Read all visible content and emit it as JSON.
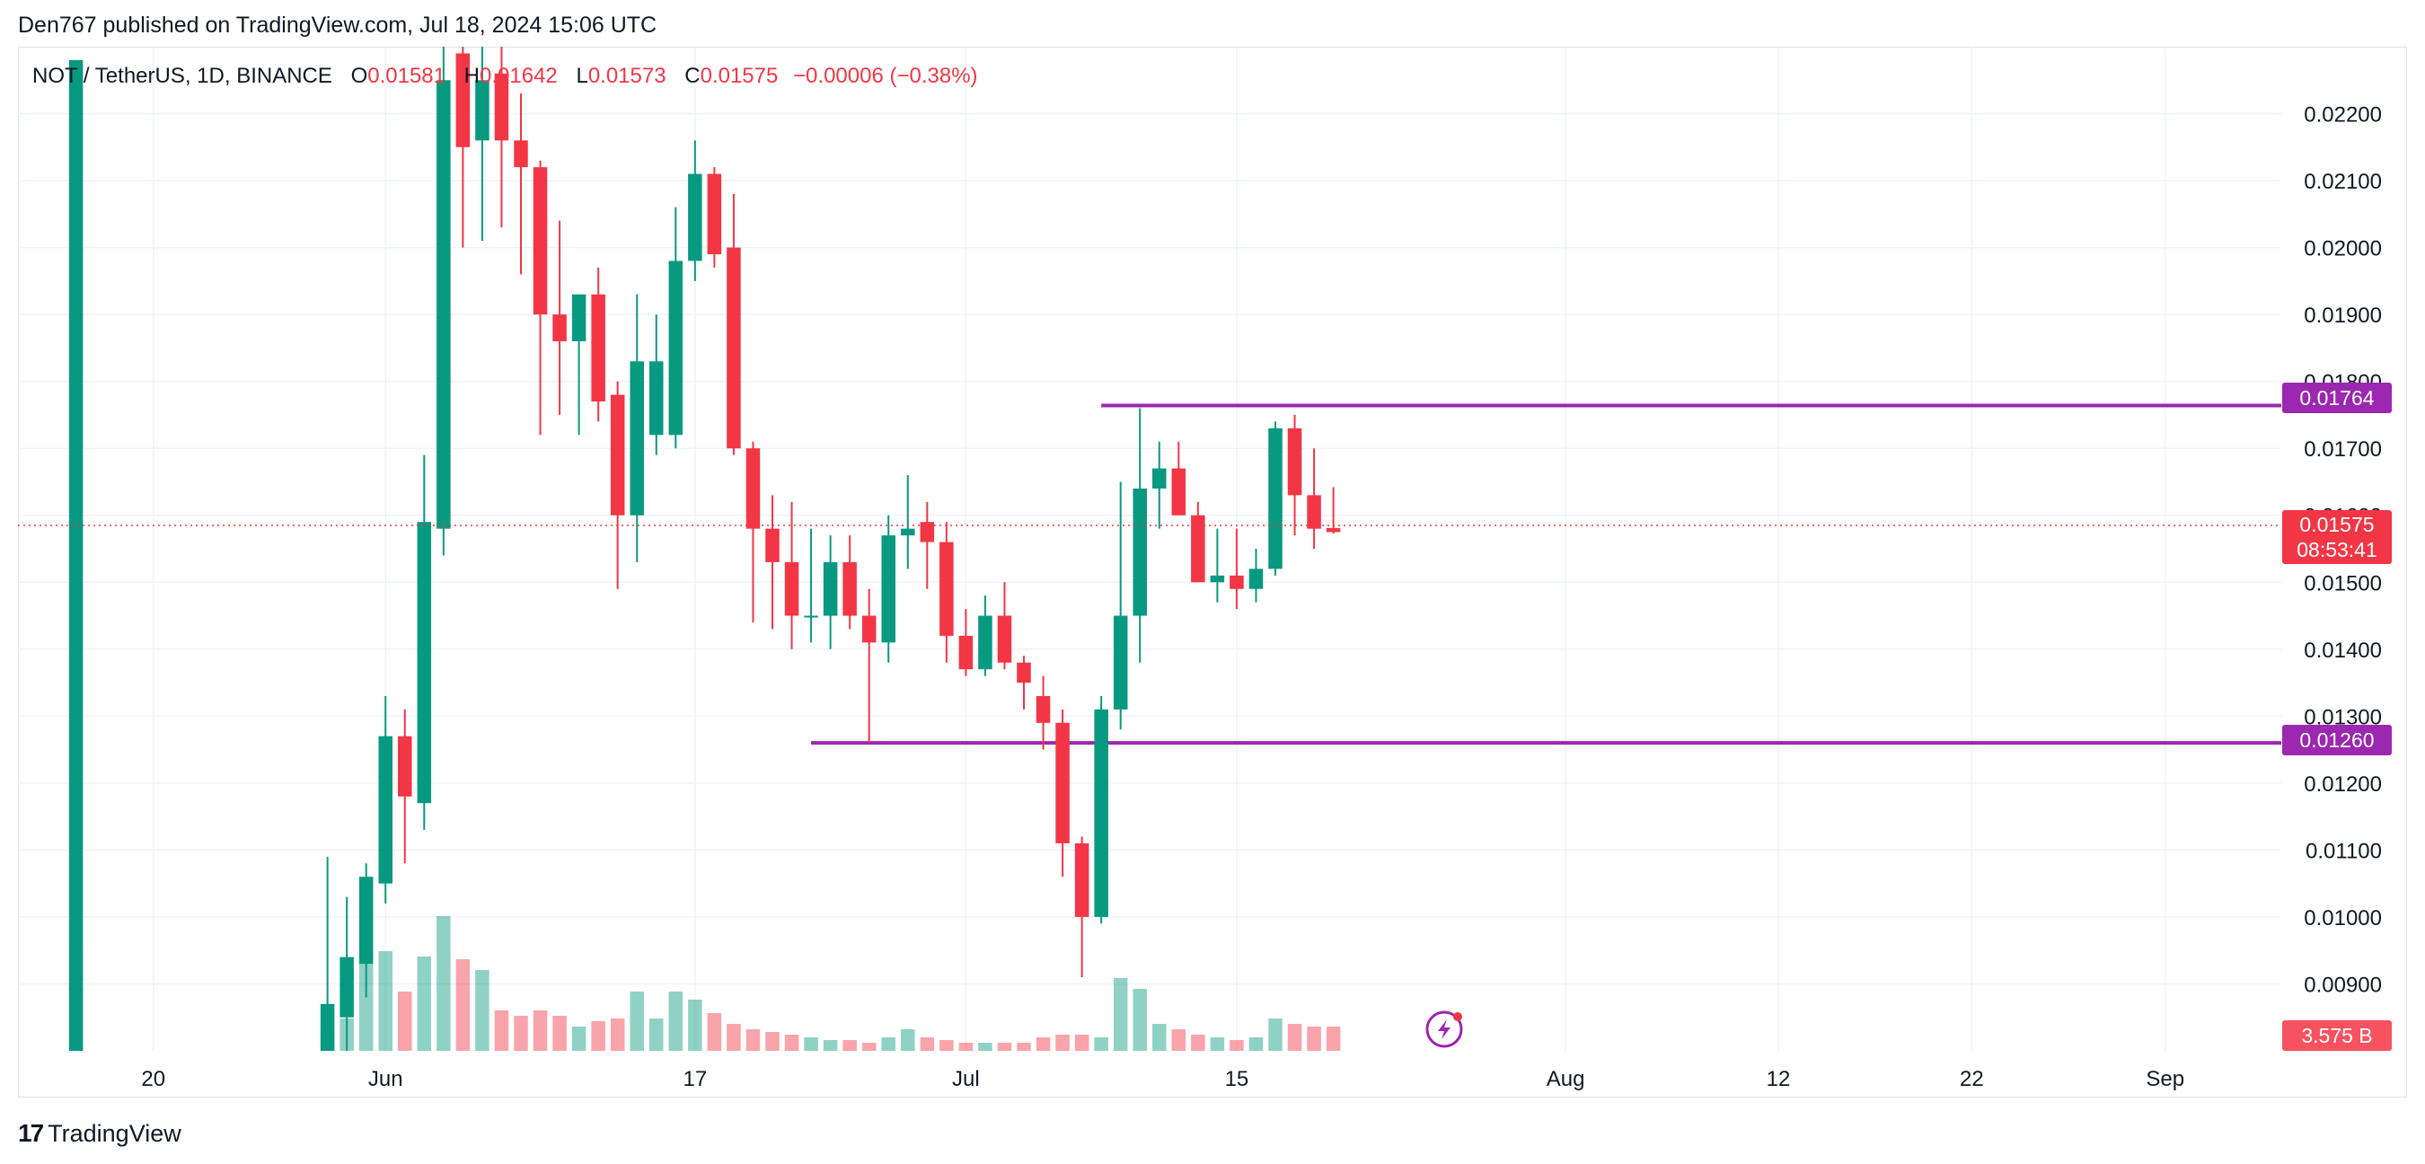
{
  "header": {
    "published": "Den767 published on TradingView.com, Jul 18, 2024 15:06 UTC"
  },
  "legend": {
    "symbol": "NOT / TetherUS, 1D, BINANCE",
    "o_label": "O",
    "o": "0.01581",
    "h_label": "H",
    "h": "0.01642",
    "l_label": "L",
    "l": "0.01573",
    "c_label": "C",
    "c": "0.01575",
    "change": "−0.00006 (−0.38%)"
  },
  "price_scale": {
    "current_price": "0.01575",
    "countdown": "08:53:41",
    "volume_tag": "3.575 B",
    "levels": [
      {
        "label": "0.01764",
        "value": 0.01764
      },
      {
        "label": "0.01260",
        "value": 0.0126
      }
    ]
  },
  "footer": {
    "brand": "TradingView"
  },
  "colors": {
    "up": "#089981",
    "down": "#f23645",
    "level": "#9c27b0",
    "grid": "#f0f3fa"
  },
  "chart_data": {
    "type": "candlestick",
    "symbol": "NOT / TetherUS",
    "interval": "1D",
    "exchange": "BINANCE",
    "y_ticks": [
      "0.00900",
      "0.01000",
      "0.01100",
      "0.01200",
      "0.01300",
      "0.01400",
      "0.01500",
      "0.01600",
      "0.01700",
      "0.01800",
      "0.01900",
      "0.02000",
      "0.02100",
      "0.02200"
    ],
    "x_ticks": [
      {
        "label": "20",
        "date": "2024-05-20"
      },
      {
        "label": "Jun",
        "date": "2024-06-01"
      },
      {
        "label": "17",
        "date": "2024-06-17"
      },
      {
        "label": "Jul",
        "date": "2024-07-01"
      },
      {
        "label": "15",
        "date": "2024-07-15"
      },
      {
        "label": "Aug",
        "date": "2024-08-01"
      },
      {
        "label": "12",
        "date": "2024-08-12"
      },
      {
        "label": "22",
        "date": "2024-08-22"
      },
      {
        "label": "Sep",
        "date": "2024-09-01"
      }
    ],
    "x_range": [
      "2024-05-13",
      "2024-09-07"
    ],
    "ylim": [
      0.008,
      0.023
    ],
    "grid": true,
    "horizontal_levels": [
      {
        "value": 0.01764,
        "from": "2024-07-08"
      },
      {
        "value": 0.0126,
        "from": "2024-06-23"
      }
    ],
    "candles": [
      {
        "date": "2024-05-16",
        "o": 0.008,
        "h": 0.0228,
        "l": 0.008,
        "c": 0.0228,
        "vol": 0.38
      },
      {
        "date": "2024-05-29",
        "o": 0.008,
        "h": 0.0109,
        "l": 0.008,
        "c": 0.0087,
        "vol": 0.08
      },
      {
        "date": "2024-05-30",
        "o": 0.0085,
        "h": 0.0103,
        "l": 0.008,
        "c": 0.0094,
        "vol": 0.12
      },
      {
        "date": "2024-05-31",
        "o": 0.0093,
        "h": 0.0108,
        "l": 0.0088,
        "c": 0.0106,
        "vol": 0.36
      },
      {
        "date": "2024-06-01",
        "o": 0.0105,
        "h": 0.0133,
        "l": 0.0102,
        "c": 0.0127,
        "vol": 0.37
      },
      {
        "date": "2024-06-02",
        "o": 0.0127,
        "h": 0.0131,
        "l": 0.0108,
        "c": 0.0118,
        "vol": 0.22
      },
      {
        "date": "2024-06-03",
        "o": 0.0117,
        "h": 0.0169,
        "l": 0.0113,
        "c": 0.0159,
        "vol": 0.35
      },
      {
        "date": "2024-06-04",
        "o": 0.0158,
        "h": 0.023,
        "l": 0.0154,
        "c": 0.0225,
        "vol": 0.5
      },
      {
        "date": "2024-06-05",
        "o": 0.0229,
        "h": 0.023,
        "l": 0.02,
        "c": 0.0215,
        "vol": 0.34
      },
      {
        "date": "2024-06-06",
        "o": 0.0216,
        "h": 0.023,
        "l": 0.0201,
        "c": 0.0225,
        "vol": 0.3
      },
      {
        "date": "2024-06-07",
        "o": 0.0226,
        "h": 0.023,
        "l": 0.0203,
        "c": 0.0216,
        "vol": 0.15
      },
      {
        "date": "2024-06-08",
        "o": 0.0216,
        "h": 0.0223,
        "l": 0.0196,
        "c": 0.0212,
        "vol": 0.13
      },
      {
        "date": "2024-06-09",
        "o": 0.0212,
        "h": 0.0213,
        "l": 0.0172,
        "c": 0.019,
        "vol": 0.15
      },
      {
        "date": "2024-06-10",
        "o": 0.019,
        "h": 0.0204,
        "l": 0.0175,
        "c": 0.0186,
        "vol": 0.13
      },
      {
        "date": "2024-06-11",
        "o": 0.0186,
        "h": 0.0192,
        "l": 0.0172,
        "c": 0.0193,
        "vol": 0.09
      },
      {
        "date": "2024-06-12",
        "o": 0.0193,
        "h": 0.0197,
        "l": 0.0174,
        "c": 0.0177,
        "vol": 0.11
      },
      {
        "date": "2024-06-13",
        "o": 0.0178,
        "h": 0.018,
        "l": 0.0149,
        "c": 0.016,
        "vol": 0.12
      },
      {
        "date": "2024-06-14",
        "o": 0.016,
        "h": 0.0193,
        "l": 0.0153,
        "c": 0.0183,
        "vol": 0.22
      },
      {
        "date": "2024-06-15",
        "o": 0.0172,
        "h": 0.019,
        "l": 0.0169,
        "c": 0.0183,
        "vol": 0.12
      },
      {
        "date": "2024-06-16",
        "o": 0.0172,
        "h": 0.0206,
        "l": 0.017,
        "c": 0.0198,
        "vol": 0.22
      },
      {
        "date": "2024-06-17",
        "o": 0.0198,
        "h": 0.0216,
        "l": 0.0195,
        "c": 0.0211,
        "vol": 0.19
      },
      {
        "date": "2024-06-18",
        "o": 0.0211,
        "h": 0.0212,
        "l": 0.0197,
        "c": 0.0199,
        "vol": 0.14
      },
      {
        "date": "2024-06-19",
        "o": 0.02,
        "h": 0.0208,
        "l": 0.0169,
        "c": 0.017,
        "vol": 0.1
      },
      {
        "date": "2024-06-20",
        "o": 0.017,
        "h": 0.0171,
        "l": 0.0144,
        "c": 0.0158,
        "vol": 0.08
      },
      {
        "date": "2024-06-21",
        "o": 0.0158,
        "h": 0.0163,
        "l": 0.0143,
        "c": 0.0153,
        "vol": 0.07
      },
      {
        "date": "2024-06-22",
        "o": 0.0153,
        "h": 0.0162,
        "l": 0.014,
        "c": 0.0145,
        "vol": 0.06
      },
      {
        "date": "2024-06-23",
        "o": 0.0145,
        "h": 0.0158,
        "l": 0.0141,
        "c": 0.0145,
        "vol": 0.05
      },
      {
        "date": "2024-06-24",
        "o": 0.0145,
        "h": 0.0157,
        "l": 0.014,
        "c": 0.0153,
        "vol": 0.04
      },
      {
        "date": "2024-06-25",
        "o": 0.0153,
        "h": 0.0157,
        "l": 0.0143,
        "c": 0.0145,
        "vol": 0.04
      },
      {
        "date": "2024-06-26",
        "o": 0.0145,
        "h": 0.0149,
        "l": 0.0126,
        "c": 0.0141,
        "vol": 0.03
      },
      {
        "date": "2024-06-27",
        "o": 0.0141,
        "h": 0.016,
        "l": 0.0138,
        "c": 0.0157,
        "vol": 0.05
      },
      {
        "date": "2024-06-28",
        "o": 0.0157,
        "h": 0.0166,
        "l": 0.0152,
        "c": 0.0158,
        "vol": 0.08
      },
      {
        "date": "2024-06-29",
        "o": 0.0159,
        "h": 0.0162,
        "l": 0.0149,
        "c": 0.0156,
        "vol": 0.05
      },
      {
        "date": "2024-06-30",
        "o": 0.0156,
        "h": 0.0159,
        "l": 0.0138,
        "c": 0.0142,
        "vol": 0.04
      },
      {
        "date": "2024-07-01",
        "o": 0.0142,
        "h": 0.0146,
        "l": 0.0136,
        "c": 0.0137,
        "vol": 0.03
      },
      {
        "date": "2024-07-02",
        "o": 0.0137,
        "h": 0.0148,
        "l": 0.0136,
        "c": 0.0145,
        "vol": 0.03
      },
      {
        "date": "2024-07-03",
        "o": 0.0145,
        "h": 0.015,
        "l": 0.0137,
        "c": 0.0138,
        "vol": 0.03
      },
      {
        "date": "2024-07-04",
        "o": 0.0138,
        "h": 0.0139,
        "l": 0.0131,
        "c": 0.0135,
        "vol": 0.03
      },
      {
        "date": "2024-07-05",
        "o": 0.0133,
        "h": 0.0136,
        "l": 0.0125,
        "c": 0.0129,
        "vol": 0.05
      },
      {
        "date": "2024-07-06",
        "o": 0.0129,
        "h": 0.0131,
        "l": 0.0106,
        "c": 0.0111,
        "vol": 0.06
      },
      {
        "date": "2024-07-07",
        "o": 0.0111,
        "h": 0.0112,
        "l": 0.0091,
        "c": 0.01,
        "vol": 0.06
      },
      {
        "date": "2024-07-08",
        "o": 0.01,
        "h": 0.0133,
        "l": 0.0099,
        "c": 0.0131,
        "vol": 0.05
      },
      {
        "date": "2024-07-09",
        "o": 0.0131,
        "h": 0.0165,
        "l": 0.0128,
        "c": 0.0145,
        "vol": 0.27
      },
      {
        "date": "2024-07-10",
        "o": 0.0145,
        "h": 0.0176,
        "l": 0.0138,
        "c": 0.0164,
        "vol": 0.23
      },
      {
        "date": "2024-07-11",
        "o": 0.0164,
        "h": 0.0171,
        "l": 0.0158,
        "c": 0.0167,
        "vol": 0.1
      },
      {
        "date": "2024-07-12",
        "o": 0.0167,
        "h": 0.0171,
        "l": 0.0161,
        "c": 0.016,
        "vol": 0.08
      },
      {
        "date": "2024-07-13",
        "o": 0.016,
        "h": 0.0162,
        "l": 0.015,
        "c": 0.015,
        "vol": 0.06
      },
      {
        "date": "2024-07-14",
        "o": 0.015,
        "h": 0.0158,
        "l": 0.0147,
        "c": 0.0151,
        "vol": 0.05
      },
      {
        "date": "2024-07-15",
        "o": 0.0151,
        "h": 0.0158,
        "l": 0.0146,
        "c": 0.0149,
        "vol": 0.04
      },
      {
        "date": "2024-07-16",
        "o": 0.0149,
        "h": 0.0155,
        "l": 0.0147,
        "c": 0.0152,
        "vol": 0.05
      },
      {
        "date": "2024-07-17",
        "o": 0.0152,
        "h": 0.0174,
        "l": 0.0151,
        "c": 0.0173,
        "vol": 0.12
      },
      {
        "date": "2024-07-18",
        "o": 0.0173,
        "h": 0.0175,
        "l": 0.0157,
        "c": 0.0163,
        "vol": 0.1
      },
      {
        "date": "2024-07-19",
        "o": 0.0163,
        "h": 0.017,
        "l": 0.0155,
        "c": 0.0158,
        "vol": 0.09
      },
      {
        "date": "2024-07-20",
        "o": 0.01581,
        "h": 0.01642,
        "l": 0.01573,
        "c": 0.01575,
        "vol": 0.09
      }
    ]
  }
}
